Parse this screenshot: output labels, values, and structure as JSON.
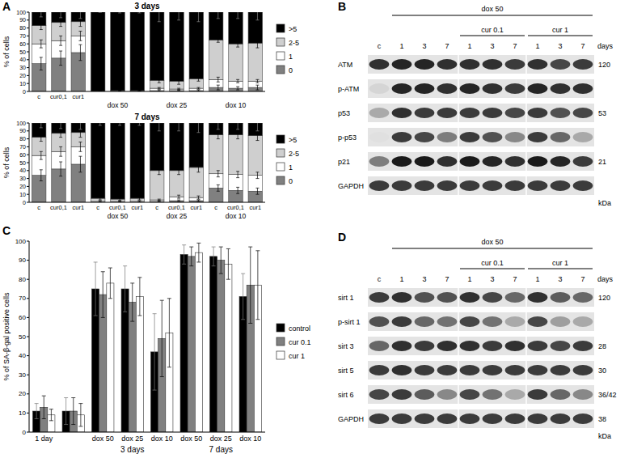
{
  "panel_labels": [
    "A",
    "B",
    "C",
    "D"
  ],
  "chart_data": [
    {
      "type": "bar",
      "stacked": true,
      "title": "3 days",
      "y_label": "% of cells",
      "categories": [
        "c",
        "cur0,1",
        "cur1",
        null,
        null,
        null,
        null,
        null,
        null,
        null,
        null,
        null
      ],
      "x_groups": [
        {
          "label": "dox 50",
          "span": [
            3,
            5
          ]
        },
        {
          "label": "dox 25",
          "span": [
            6,
            8
          ]
        },
        {
          "label": "dox 10",
          "span": [
            9,
            11
          ]
        }
      ],
      "ylim": [
        0,
        100
      ],
      "yticks": [
        0,
        10,
        20,
        30,
        40,
        50,
        60,
        70,
        80,
        90,
        100
      ],
      "legend": "right",
      "series": [
        {
          "name": "0",
          "color": "#808080",
          "values": [
            35,
            42,
            49,
            0,
            0,
            0,
            1,
            1,
            1,
            5,
            4,
            5
          ],
          "errors": [
            8,
            9,
            10,
            0,
            0,
            0,
            1,
            1,
            1,
            3,
            2,
            3
          ]
        },
        {
          "name": "1",
          "color": "#ffffff",
          "values": [
            25,
            22,
            21,
            0,
            0,
            0,
            3,
            2,
            3,
            10,
            9,
            8
          ],
          "errors": [
            5,
            6,
            6,
            0,
            0,
            0,
            1,
            1,
            1,
            3,
            2,
            2
          ]
        },
        {
          "name": "2-5",
          "color": "#cfcfcf",
          "values": [
            23,
            23,
            18,
            0,
            1,
            1,
            10,
            10,
            12,
            50,
            47,
            48
          ],
          "errors": [
            5,
            5,
            6,
            0,
            1,
            1,
            3,
            4,
            3,
            3,
            4,
            6
          ]
        },
        {
          "name": ">5",
          "color": "#000000",
          "values": [
            17,
            13,
            12,
            100,
            99,
            99,
            86,
            87,
            84,
            35,
            40,
            39
          ],
          "errors": [
            6,
            7,
            8,
            0,
            1,
            1,
            12,
            10,
            12,
            8,
            8,
            10
          ]
        }
      ]
    },
    {
      "type": "bar",
      "stacked": true,
      "title": "7 days",
      "y_label": "% of cells",
      "categories": [
        "c",
        "cur0,1",
        "cur1",
        "c",
        "cur0,1",
        "cur1",
        "c",
        "cur0,1",
        "cur1",
        "c",
        "cur0,1",
        "cur1"
      ],
      "x_groups": [
        {
          "label": "dox 50",
          "span": [
            3,
            5
          ]
        },
        {
          "label": "dox 25",
          "span": [
            6,
            8
          ]
        },
        {
          "label": "dox 10",
          "span": [
            9,
            11
          ]
        }
      ],
      "ylim": [
        0,
        100
      ],
      "yticks": [
        0,
        10,
        20,
        30,
        40,
        50,
        60,
        70,
        80,
        90,
        100
      ],
      "legend": "right",
      "series": [
        {
          "name": "0",
          "color": "#808080",
          "values": [
            34,
            42,
            48,
            0,
            0,
            0,
            1,
            2,
            2,
            18,
            15,
            14
          ],
          "errors": [
            7,
            9,
            10,
            0,
            0,
            0,
            1,
            1,
            1,
            4,
            4,
            4
          ]
        },
        {
          "name": "1",
          "color": "#ffffff",
          "values": [
            25,
            22,
            22,
            1,
            1,
            1,
            2,
            5,
            4,
            18,
            20,
            20
          ],
          "errors": [
            5,
            6,
            6,
            1,
            1,
            1,
            1,
            2,
            2,
            4,
            4,
            4
          ]
        },
        {
          "name": "2-5",
          "color": "#cfcfcf",
          "values": [
            23,
            23,
            18,
            4,
            3,
            4,
            37,
            33,
            38,
            49,
            50,
            50
          ],
          "errors": [
            5,
            5,
            6,
            2,
            2,
            2,
            5,
            5,
            6,
            5,
            5,
            6
          ]
        },
        {
          "name": ">5",
          "color": "#000000",
          "values": [
            18,
            13,
            12,
            95,
            96,
            95,
            60,
            60,
            56,
            15,
            15,
            16
          ],
          "errors": [
            6,
            7,
            8,
            3,
            3,
            3,
            10,
            10,
            12,
            8,
            8,
            10
          ]
        }
      ]
    },
    {
      "type": "bar",
      "y_label": "% of SA-β-gal positive cells",
      "categories": [
        "1 day",
        null,
        "dox 50",
        "dox 25",
        "dox 10",
        "dox 50",
        "dox 25",
        "dox 10"
      ],
      "x_groups": [
        {
          "label": "3 days",
          "span": [
            2,
            4
          ]
        },
        {
          "label": "7 days",
          "span": [
            5,
            7
          ]
        }
      ],
      "ylim": [
        0,
        100
      ],
      "yticks": [
        0,
        10,
        20,
        30,
        40,
        50,
        60,
        70,
        80,
        90,
        100
      ],
      "legend": "right",
      "series": [
        {
          "name": "control",
          "color": "#000000",
          "values": [
            11,
            11,
            75,
            75,
            42,
            93,
            92,
            71
          ],
          "errors": [
            4,
            7,
            14,
            12,
            20,
            5,
            5,
            12
          ]
        },
        {
          "name": "cur 0.1",
          "color": "#808080",
          "values": [
            13,
            11,
            72,
            68,
            49,
            92,
            90,
            77
          ],
          "errors": [
            6,
            7,
            12,
            10,
            20,
            5,
            7,
            20
          ]
        },
        {
          "name": "cur 1",
          "color": "#ffffff",
          "values": [
            9,
            9,
            78,
            71,
            52,
            94,
            88,
            77
          ],
          "errors": [
            3,
            6,
            8,
            10,
            18,
            5,
            8,
            18
          ]
        }
      ]
    }
  ],
  "blots": [
    {
      "treatment": "dox 50",
      "subgroups": [
        "cur 0.1",
        "cur 1"
      ],
      "lanes": [
        "c",
        "1",
        "3",
        "7",
        "1",
        "3",
        "7",
        "1",
        "3",
        "7"
      ],
      "lane_unit": "days",
      "unit": "kDa",
      "rows": [
        {
          "label": "ATM",
          "size": "120",
          "bands": [
            0.85,
            0.9,
            0.9,
            0.85,
            0.85,
            0.85,
            0.8,
            0.85,
            0.75,
            0.8
          ]
        },
        {
          "label": "p-ATM",
          "size": null,
          "bands": [
            0.1,
            0.9,
            0.9,
            0.85,
            0.9,
            0.85,
            0.8,
            0.9,
            0.85,
            0.85
          ]
        },
        {
          "label": "p53",
          "size": "53",
          "bands": [
            0.3,
            0.85,
            0.8,
            0.8,
            0.8,
            0.8,
            0.75,
            0.8,
            0.7,
            0.75
          ]
        },
        {
          "label": "p-p53",
          "size": null,
          "bands": [
            0.05,
            0.8,
            0.75,
            0.5,
            0.8,
            0.7,
            0.45,
            0.8,
            0.6,
            0.3
          ]
        },
        {
          "label": "p21",
          "size": "21",
          "bands": [
            0.5,
            0.95,
            0.95,
            0.85,
            0.95,
            0.9,
            0.85,
            0.95,
            0.9,
            0.8
          ]
        },
        {
          "label": "GAPDH",
          "size": null,
          "bands": [
            0.8,
            0.8,
            0.8,
            0.8,
            0.8,
            0.8,
            0.8,
            0.8,
            0.8,
            0.8
          ]
        }
      ]
    },
    {
      "treatment": "dox 50",
      "subgroups": [
        "cur 0.1",
        "cur 1"
      ],
      "lanes": [
        "c",
        "1",
        "3",
        "7",
        "1",
        "3",
        "7",
        "1",
        "3",
        "7"
      ],
      "lane_unit": "days",
      "unit": "kDa",
      "rows": [
        {
          "label": "sirt 1",
          "size": "120",
          "bands": [
            0.8,
            0.85,
            0.7,
            0.7,
            0.85,
            0.75,
            0.6,
            0.85,
            0.65,
            0.6
          ]
        },
        {
          "label": "p-sirt 1",
          "size": null,
          "bands": [
            0.7,
            0.8,
            0.6,
            0.55,
            0.75,
            0.55,
            0.3,
            0.75,
            0.35,
            0.3
          ]
        },
        {
          "label": "sirt 3",
          "size": "28",
          "bands": [
            0.6,
            0.85,
            0.8,
            0.85,
            0.85,
            0.8,
            0.85,
            0.8,
            0.75,
            0.8
          ]
        },
        {
          "label": "sirt 5",
          "size": "30",
          "bands": [
            0.8,
            0.85,
            0.8,
            0.8,
            0.8,
            0.8,
            0.8,
            0.8,
            0.8,
            0.8
          ]
        },
        {
          "label": "sirt 6",
          "size": "36/42",
          "bands": [
            0.75,
            0.8,
            0.65,
            0.45,
            0.75,
            0.55,
            0.3,
            0.8,
            0.6,
            0.45
          ]
        },
        {
          "label": "GAPDH",
          "size": "38",
          "bands": [
            0.8,
            0.8,
            0.8,
            0.8,
            0.8,
            0.8,
            0.8,
            0.8,
            0.8,
            0.8
          ]
        }
      ]
    }
  ]
}
